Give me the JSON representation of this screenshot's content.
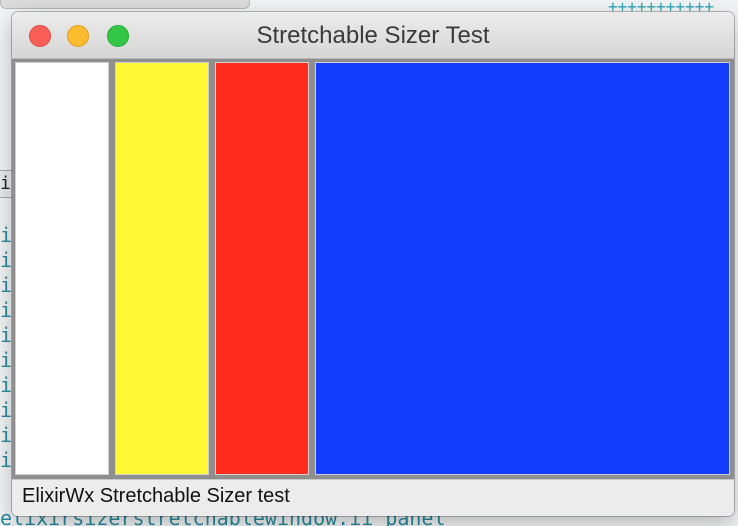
{
  "background_terminal": {
    "prompt_fragment": "ix",
    "left_column_char": "i",
    "bottom_text": "elixirsizerstretchablewindow.ii panel",
    "plus_row": "+++++++++++",
    "plus_col": "+"
  },
  "window": {
    "title": "Stretchable Sizer Test",
    "status_text": "ElixirWx Stretchable Sizer test"
  },
  "panels": [
    {
      "name": "white-panel",
      "color": "#ffffff"
    },
    {
      "name": "yellow-panel",
      "color": "#fff935"
    },
    {
      "name": "red-panel",
      "color": "#ff2b1d"
    },
    {
      "name": "blue-panel",
      "color": "#123dff"
    }
  ]
}
